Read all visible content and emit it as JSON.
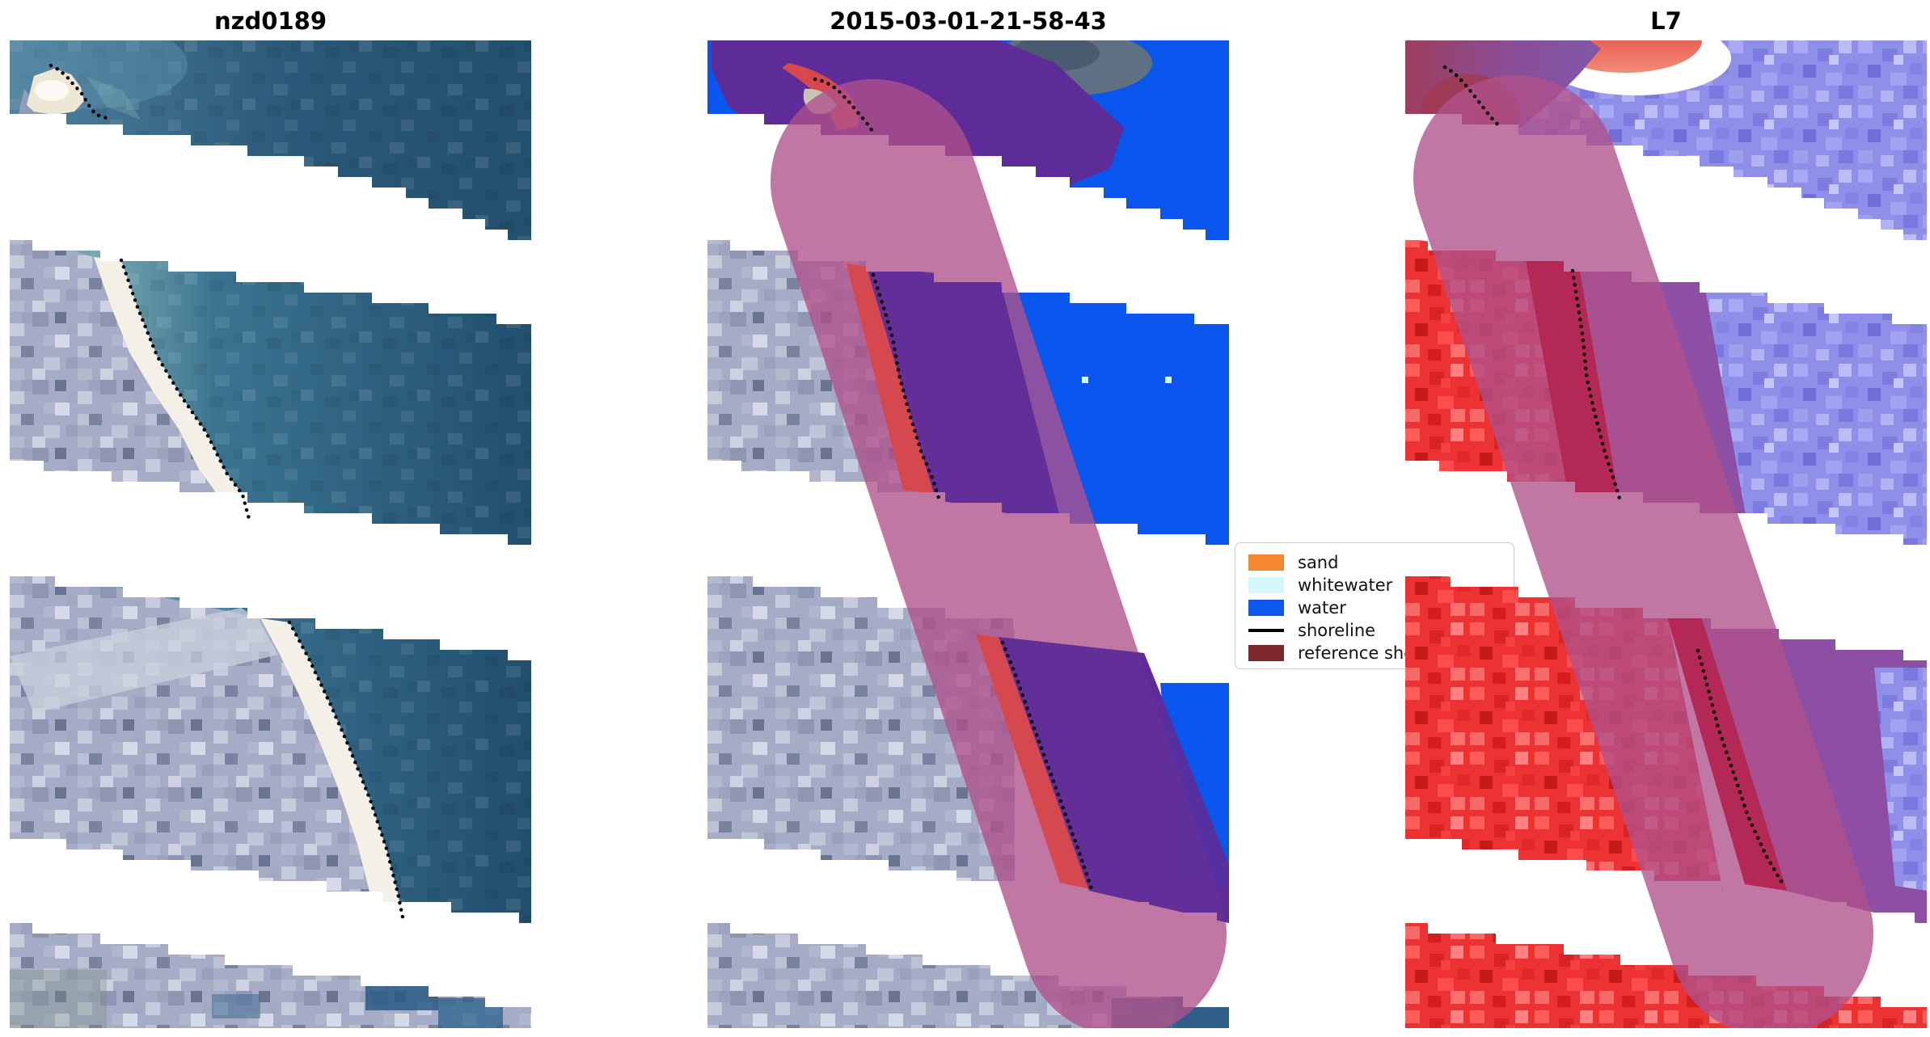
{
  "figure": {
    "background": "#ffffff"
  },
  "panels": [
    {
      "title": "nzd0189",
      "kind": "true-color satellite image with detected shoreline",
      "shoreline_paths": [
        [
          [
            51,
            31
          ],
          [
            60,
            36
          ],
          [
            70,
            44
          ],
          [
            80,
            56
          ],
          [
            88,
            64
          ],
          [
            94,
            74
          ],
          [
            99,
            82
          ],
          [
            105,
            90
          ],
          [
            112,
            94
          ],
          [
            120,
            96
          ]
        ],
        [
          [
            138,
            272
          ],
          [
            158,
            330
          ],
          [
            182,
            390
          ],
          [
            212,
            440
          ],
          [
            243,
            485
          ],
          [
            268,
            535
          ],
          [
            288,
            562
          ],
          [
            296,
            592
          ]
        ],
        [
          [
            346,
            720
          ],
          [
            370,
            765
          ],
          [
            396,
            820
          ],
          [
            420,
            875
          ],
          [
            446,
            940
          ],
          [
            466,
            1000
          ],
          [
            480,
            1055
          ],
          [
            486,
            1085
          ]
        ]
      ]
    },
    {
      "title": "2015-03-01-21-58-43",
      "kind": "classified image (sand / whitewater / water) with shoreline and reference buffer",
      "shoreline_paths": [
        [
          [
            133,
            48
          ],
          [
            145,
            51
          ],
          [
            160,
            60
          ],
          [
            175,
            76
          ],
          [
            190,
            94
          ],
          [
            200,
            106
          ],
          [
            205,
            114
          ]
        ],
        [
          [
            205,
            290
          ],
          [
            219,
            334
          ],
          [
            229,
            368
          ],
          [
            237,
            414
          ],
          [
            249,
            459
          ],
          [
            264,
            508
          ],
          [
            279,
            544
          ],
          [
            286,
            566
          ]
        ],
        [
          [
            365,
            745
          ],
          [
            383,
            790
          ],
          [
            400,
            840
          ],
          [
            420,
            895
          ],
          [
            440,
            950
          ],
          [
            460,
            1005
          ],
          [
            475,
            1050
          ]
        ]
      ],
      "whitewater_points": [
        [
          467,
          420
        ],
        [
          570,
          420
        ]
      ]
    },
    {
      "title": "L7",
      "kind": "Landsat 7 false-color composite with shoreline and reference buffer",
      "shoreline_paths": [
        [
          [
            49,
            33
          ],
          [
            60,
            40
          ],
          [
            72,
            52
          ],
          [
            85,
            68
          ],
          [
            98,
            85
          ],
          [
            110,
            100
          ],
          [
            118,
            107
          ]
        ],
        [
          [
            207,
            285
          ],
          [
            214,
            330
          ],
          [
            220,
            370
          ],
          [
            224,
            415
          ],
          [
            234,
            460
          ],
          [
            247,
            510
          ],
          [
            260,
            550
          ],
          [
            266,
            570
          ]
        ],
        [
          [
            362,
            755
          ],
          [
            374,
            800
          ],
          [
            387,
            850
          ],
          [
            404,
            900
          ],
          [
            424,
            960
          ],
          [
            447,
            1010
          ],
          [
            466,
            1042
          ]
        ]
      ]
    }
  ],
  "legend": {
    "items": [
      {
        "label": "sand",
        "color": "#F5872E",
        "type": "patch"
      },
      {
        "label": "whitewater",
        "color": "#D2F6F9",
        "type": "patch"
      },
      {
        "label": "water",
        "color": "#0D57EC",
        "type": "patch"
      },
      {
        "label": "shoreline",
        "color": "#000000",
        "type": "line"
      },
      {
        "label": "reference shoreline",
        "color": "#7D282A",
        "type": "patch"
      }
    ]
  },
  "colors": {
    "class_water_blue": "#0956EF",
    "class_water_purple": "#5D2C99",
    "reference_band_red": "#D5494E",
    "buffer_pink": "#B0518A",
    "shoreline_black": "#000000",
    "whitewater_dot": "#D6FBFF",
    "l7_land_red": "#EC3232",
    "l7_water_lavender": "#8F8FE9",
    "l7_band_crimson": "#B52552",
    "l7_band_purple": "#8C4FA3",
    "beach_sand": "#F3F1E7",
    "land_grey": "#A6ACC6"
  },
  "chart_data": {
    "type": "heatmap",
    "note": "Three-panel coastal shoreline-detection figure (matplotlib style): raw image, classified image, Landsat-7 false color; SLC-off white gap stripes cross all panels.",
    "panel_titles": [
      "nzd0189",
      "2015-03-01-21-58-43",
      "L7"
    ],
    "legend_entries": [
      "sand",
      "whitewater",
      "water",
      "shoreline",
      "reference shoreline"
    ],
    "legend_position": "center right, between middle and right panels",
    "grid": false
  }
}
